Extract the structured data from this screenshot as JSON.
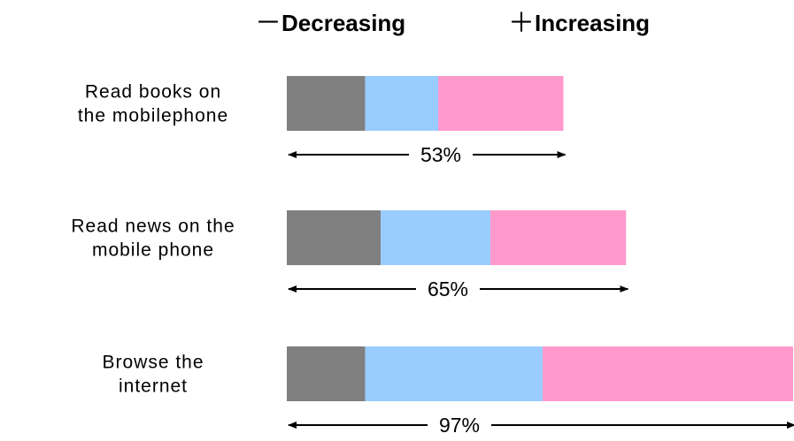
{
  "chart_data": {
    "type": "bar",
    "orientation": "horizontal",
    "stacked": true,
    "legend": {
      "placement": "top",
      "entries": [
        {
          "symbol": "－",
          "label": "Decreasing"
        },
        {
          "symbol": "＋",
          "label": "Increasing"
        }
      ]
    },
    "colors": [
      "#808080",
      "#99ccff",
      "#ff99cc"
    ],
    "categories": [
      {
        "label_lines": [
          "Read books on",
          "the mobilephone"
        ],
        "total_label": "53%",
        "total": 53,
        "segments": [
          15,
          14,
          24
        ]
      },
      {
        "label_lines": [
          "Read news on the",
          "mobile phone"
        ],
        "total_label": "65%",
        "total": 65,
        "segments": [
          18,
          21,
          26
        ]
      },
      {
        "label_lines": [
          "Browse the",
          "internet"
        ],
        "total_label": "97%",
        "total": 97,
        "segments": [
          15,
          34,
          48
        ]
      }
    ],
    "grid": false,
    "xlim": [
      0,
      100
    ]
  }
}
